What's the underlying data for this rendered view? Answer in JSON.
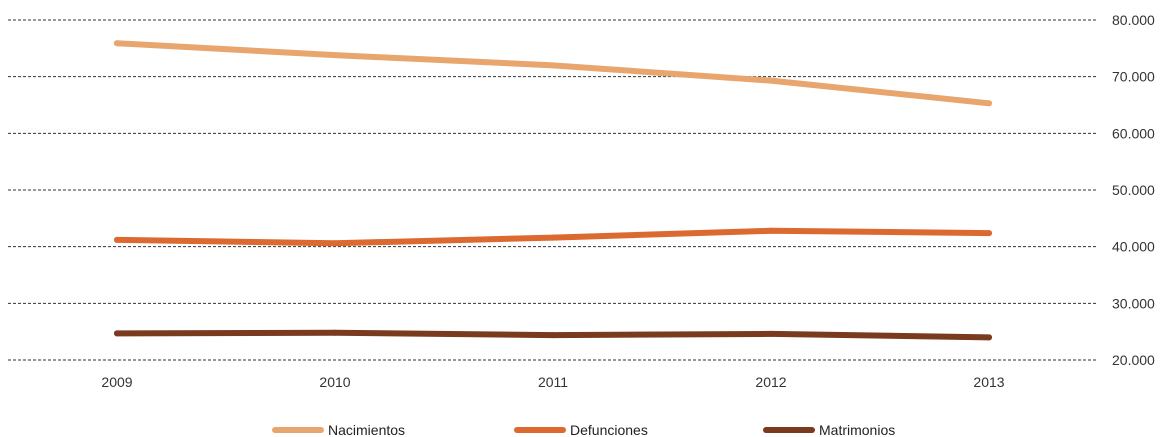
{
  "chart_data": {
    "type": "line",
    "title": "",
    "xlabel": "",
    "ylabel": "",
    "categories": [
      "2009",
      "2010",
      "2011",
      "2012",
      "2013"
    ],
    "ylim": [
      20000,
      80000
    ],
    "yticks": [
      20000,
      30000,
      40000,
      50000,
      60000,
      70000,
      80000
    ],
    "ytick_labels": [
      "20.000",
      "30.000",
      "40.000",
      "50.000",
      "60.000",
      "70.000",
      "80.000"
    ],
    "y_axis_side": "right",
    "grid": "horizontal dashed",
    "legend_position": "bottom",
    "series": [
      {
        "name": "Nacimientos",
        "color": "#E8A56E",
        "values": [
          75900,
          73800,
          72000,
          69300,
          65300
        ]
      },
      {
        "name": "Defunciones",
        "color": "#DC6A30",
        "values": [
          41200,
          40600,
          41600,
          42800,
          42400
        ]
      },
      {
        "name": "Matrimonios",
        "color": "#7A3A1E",
        "values": [
          24700,
          24800,
          24400,
          24600,
          24000
        ]
      }
    ]
  }
}
